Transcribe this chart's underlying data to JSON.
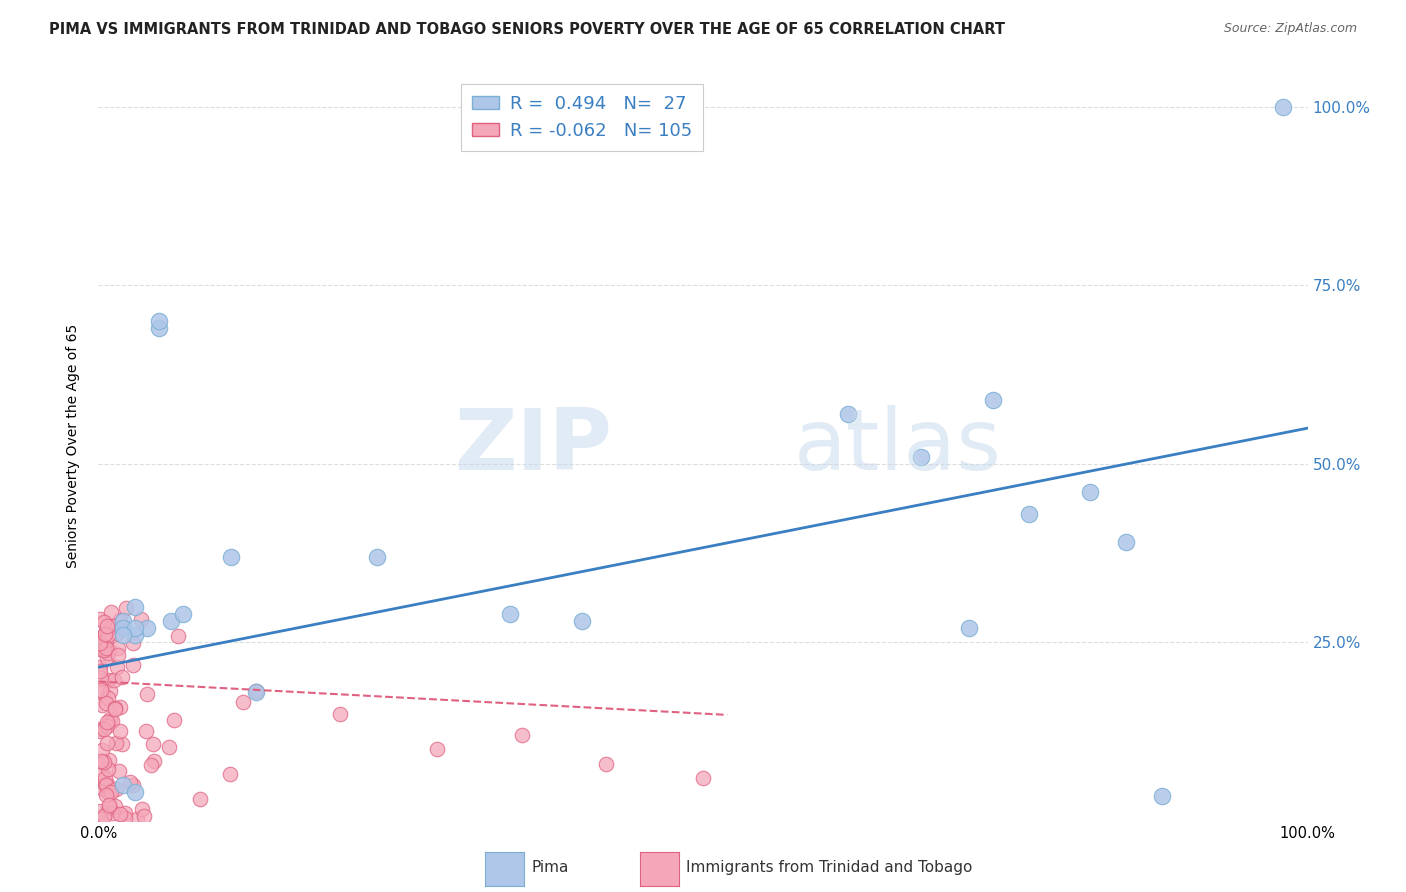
{
  "title": "PIMA VS IMMIGRANTS FROM TRINIDAD AND TOBAGO SENIORS POVERTY OVER THE AGE OF 65 CORRELATION CHART",
  "source": "Source: ZipAtlas.com",
  "ylabel": "Seniors Poverty Over the Age of 65",
  "xlim": [
    0.0,
    1.0
  ],
  "ylim": [
    0.0,
    1.05
  ],
  "watermark_part1": "ZIP",
  "watermark_part2": "atlas",
  "pima_R": 0.494,
  "pima_N": 27,
  "tt_R": -0.062,
  "tt_N": 105,
  "pima_color": "#aec6e8",
  "tt_color": "#f4a7b9",
  "pima_edge_color": "#7bafd4",
  "tt_edge_color": "#e06080",
  "blue_line_color": "#3a7fc1",
  "pink_line_color": "#e06080",
  "pima_line_intercept": 0.215,
  "pima_line_slope": 0.335,
  "tt_line_intercept": 0.195,
  "tt_line_slope": -0.09,
  "tt_line_xmax": 0.52,
  "pima_x": [
    0.98,
    0.34,
    0.62,
    0.68,
    0.72,
    0.74,
    0.77,
    0.82,
    0.85,
    0.88,
    0.02,
    0.03,
    0.04,
    0.05,
    0.06,
    0.07,
    0.11,
    0.13,
    0.23,
    0.02,
    0.03,
    0.03,
    0.02,
    0.02,
    0.03,
    0.05,
    0.4
  ],
  "pima_y": [
    1.0,
    0.29,
    0.57,
    0.51,
    0.27,
    0.59,
    0.43,
    0.46,
    0.39,
    0.035,
    0.28,
    0.3,
    0.27,
    0.69,
    0.28,
    0.29,
    0.37,
    0.18,
    0.37,
    0.27,
    0.26,
    0.27,
    0.26,
    0.05,
    0.04,
    0.7,
    0.28
  ],
  "grid_color": "#dddddd",
  "background_color": "#ffffff",
  "title_fontsize": 10.5,
  "source_fontsize": 9,
  "legend_r_color": "#3a7fc1",
  "legend_n_color": "#3a7fc1"
}
